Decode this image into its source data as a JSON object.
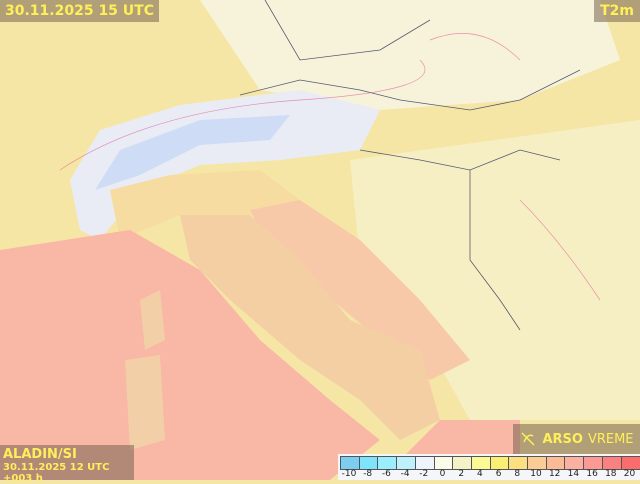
{
  "header": {
    "title": "30.11.2025 15 UTC",
    "parameter": "T2m"
  },
  "model": {
    "name": "ALADIN/SI",
    "run": "30.11.2025 12 UTC +003 h"
  },
  "logo": {
    "bold": "ARSO",
    "normal": "VREME",
    "icon": "arso-logo-icon"
  },
  "legend": {
    "colors": [
      "#7ccdf2",
      "#7fe3fb",
      "#9beefd",
      "#bdf1fd",
      "#eef4fb",
      "#fbfbea",
      "#f4f3c8",
      "#fbfa96",
      "#f8ef73",
      "#fbdf80",
      "#fbcc95",
      "#fbbb96",
      "#fbb0a0",
      "#fb9a94",
      "#fb8080",
      "#fb6c6c"
    ],
    "labels": [
      "-10",
      "-8",
      "-6",
      "-4",
      "-2",
      "0",
      "2",
      "4",
      "6",
      "8",
      "10",
      "12",
      "14",
      "16",
      "18",
      "20"
    ]
  }
}
